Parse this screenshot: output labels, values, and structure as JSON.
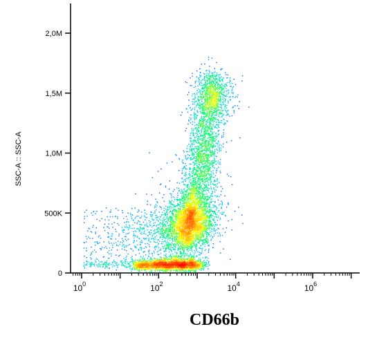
{
  "chart_data": {
    "type": "scatter",
    "subtype": "density-dot-plot",
    "title": "",
    "xlabel": "CD66b",
    "ylabel": "SSC-A :: SSC-A",
    "x_scale": "log",
    "xlim": [
      0.3,
      10000000
    ],
    "ylim": [
      -100000,
      2300000
    ],
    "x_ticks": [
      {
        "value": 1,
        "base": "10",
        "exp": "0"
      },
      {
        "value": 100,
        "base": "10",
        "exp": "2"
      },
      {
        "value": 10000,
        "base": "10",
        "exp": "4"
      },
      {
        "value": 1000000,
        "base": "10",
        "exp": "6"
      }
    ],
    "y_ticks": [
      {
        "value": 0,
        "label": "0"
      },
      {
        "value": 500000,
        "label": "500K"
      },
      {
        "value": 1000000,
        "label": "1,0M"
      },
      {
        "value": 1500000,
        "label": "1,5M"
      },
      {
        "value": 2000000,
        "label": "2,0M"
      }
    ],
    "density_colormap": [
      "#0000ff",
      "#00c8ff",
      "#00ff64",
      "#ffff00",
      "#ff8000",
      "#ff0000"
    ],
    "populations": [
      {
        "center_x": 800,
        "center_y": 400000,
        "density": "high"
      },
      {
        "center_x": 2000,
        "center_y": 1000000,
        "density": "medium"
      },
      {
        "center_x": 3500,
        "center_y": 1550000,
        "density": "low"
      },
      {
        "center_x": 500,
        "center_y": 40000,
        "density": "medium"
      },
      {
        "center_x": 40,
        "center_y": 350000,
        "density": "low"
      }
    ]
  }
}
